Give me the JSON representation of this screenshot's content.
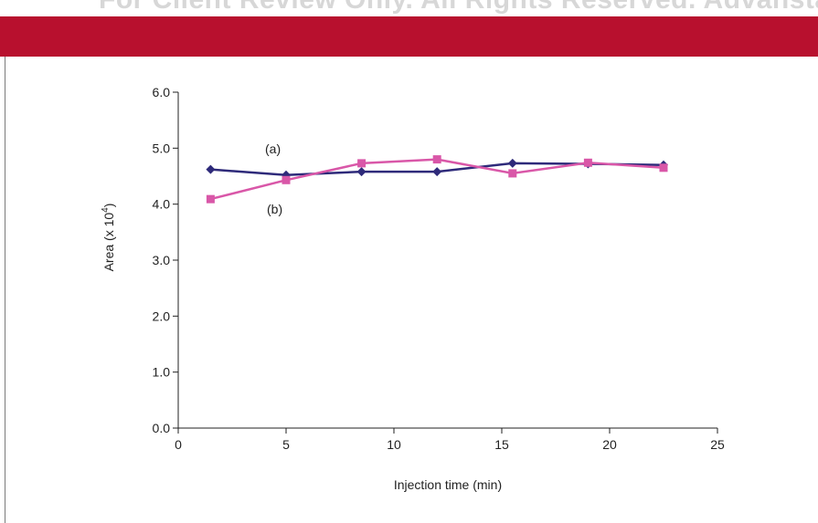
{
  "watermark": "For Client Review Only. All Rights Reserved. Advanstar",
  "colors": {
    "banner": "#b8102e",
    "series_a": "#2e2a7a",
    "series_b": "#d957a8",
    "axis": "#222222"
  },
  "chart_data": {
    "type": "line",
    "title": "",
    "xlabel": "Injection time (min)",
    "ylabel": "Area (x 10",
    "ylabel_superscript": "4",
    "ylabel_suffix": ")",
    "xlim": [
      0,
      25
    ],
    "ylim": [
      0.0,
      6.0
    ],
    "xticks": [
      0,
      5,
      10,
      15,
      20,
      25
    ],
    "xtick_labels": [
      "0",
      "5",
      "10",
      "15",
      "20",
      "25"
    ],
    "yticks": [
      0.0,
      1.0,
      2.0,
      3.0,
      4.0,
      5.0,
      6.0
    ],
    "ytick_labels": [
      "0.0",
      "1.0",
      "2.0",
      "3.0",
      "4.0",
      "5.0",
      "6.0"
    ],
    "grid": false,
    "series": [
      {
        "label": "(a)",
        "marker": "diamond",
        "x": [
          1.5,
          5,
          8.5,
          12,
          15.5,
          19,
          22.5
        ],
        "y": [
          4.62,
          4.52,
          4.58,
          4.58,
          4.73,
          4.72,
          4.7
        ]
      },
      {
        "label": "(b)",
        "marker": "square",
        "x": [
          1.5,
          5,
          8.5,
          12,
          15.5,
          19,
          22.5
        ],
        "y": [
          4.09,
          4.43,
          4.73,
          4.8,
          4.55,
          4.74,
          4.65
        ]
      }
    ],
    "annotations": [
      "(a)",
      "(b)"
    ]
  }
}
